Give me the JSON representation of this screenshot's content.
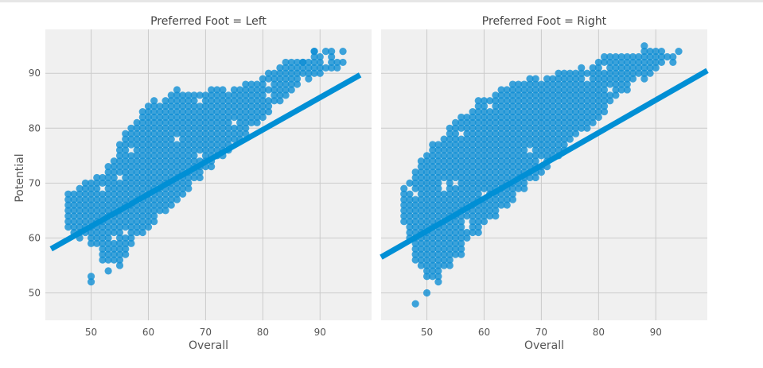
{
  "chart_data": {
    "type": "scatter",
    "style": "fivethirtyeight facet grid with linear regression line",
    "colors": {
      "points": "#0f8fd4",
      "line": "#008fd5",
      "panel": "#f0f0f0",
      "grid": "#cbcbcb"
    },
    "ylabel": "Potential",
    "xlabel": "Overall",
    "grid": true,
    "legend": "none",
    "xlim": [
      42,
      99
    ],
    "ylim": [
      45,
      98
    ],
    "yticks": [
      50,
      60,
      70,
      80,
      90
    ],
    "xticks": [
      50,
      60,
      70,
      80,
      90
    ],
    "panels": [
      {
        "title": "Preferred Foot = Left",
        "xlabel": "Overall",
        "xticks": [
          50,
          60,
          70,
          80,
          90
        ],
        "ylabel": "Potential",
        "yticks": [
          50,
          60,
          70,
          80,
          90
        ],
        "x_range": [
          46,
          94
        ],
        "regression": {
          "x": [
            43,
            97
          ],
          "y": [
            58,
            89.7
          ]
        },
        "points": {
          "lower_edge": [
            [
              46,
              62
            ],
            [
              48,
              60
            ],
            [
              50,
              59
            ],
            [
              52,
              56
            ],
            [
              54,
              55
            ],
            [
              56,
              57
            ],
            [
              58,
              60
            ],
            [
              60,
              62
            ],
            [
              62,
              64
            ],
            [
              64,
              66
            ],
            [
              66,
              68
            ],
            [
              68,
              70
            ],
            [
              70,
              72
            ],
            [
              72,
              74
            ],
            [
              74,
              76
            ],
            [
              76,
              78
            ],
            [
              78,
              80
            ],
            [
              80,
              82
            ],
            [
              82,
              84
            ],
            [
              84,
              86
            ],
            [
              86,
              88
            ],
            [
              88,
              89
            ],
            [
              90,
              90
            ]
          ],
          "upper_edge": [
            [
              46,
              68
            ],
            [
              48,
              69
            ],
            [
              50,
              70
            ],
            [
              52,
              72
            ],
            [
              54,
              74
            ],
            [
              56,
              79
            ],
            [
              58,
              82
            ],
            [
              60,
              84
            ],
            [
              62,
              85
            ],
            [
              64,
              86
            ],
            [
              66,
              87
            ],
            [
              68,
              87
            ],
            [
              70,
              87
            ],
            [
              72,
              87
            ],
            [
              74,
              87
            ],
            [
              76,
              87
            ],
            [
              78,
              88
            ],
            [
              80,
              89
            ],
            [
              82,
              91
            ],
            [
              84,
              92
            ],
            [
              86,
              92
            ],
            [
              88,
              93
            ],
            [
              90,
              94
            ]
          ],
          "outliers": [
            [
              50,
              52
            ],
            [
              50,
              53
            ],
            [
              53,
              54
            ],
            [
              55,
              55
            ],
            [
              94,
              94
            ],
            [
              89,
              94
            ],
            [
              87,
              92
            ],
            [
              85,
              92
            ]
          ]
        }
      },
      {
        "title": "Preferred Foot = Right",
        "xlabel": "Overall",
        "xticks": [
          50,
          60,
          70,
          80,
          90
        ],
        "yticks": [],
        "x_range": [
          46,
          94
        ],
        "regression": {
          "x": [
            42,
            99
          ],
          "y": [
            56.5,
            90.5
          ]
        },
        "points": {
          "lower_edge": [
            [
              46,
              62
            ],
            [
              48,
              56
            ],
            [
              50,
              53
            ],
            [
              52,
              53
            ],
            [
              54,
              55
            ],
            [
              56,
              57
            ],
            [
              58,
              60
            ],
            [
              60,
              62
            ],
            [
              62,
              64
            ],
            [
              64,
              66
            ],
            [
              66,
              68
            ],
            [
              68,
              70
            ],
            [
              70,
              72
            ],
            [
              72,
              74
            ],
            [
              74,
              76
            ],
            [
              76,
              78
            ],
            [
              78,
              80
            ],
            [
              80,
              82
            ],
            [
              82,
              84
            ],
            [
              84,
              86
            ],
            [
              86,
              88
            ],
            [
              88,
              89
            ],
            [
              90,
              90
            ]
          ],
          "upper_edge": [
            [
              46,
              70
            ],
            [
              48,
              72
            ],
            [
              50,
              75
            ],
            [
              52,
              78
            ],
            [
              54,
              80
            ],
            [
              56,
              82
            ],
            [
              58,
              84
            ],
            [
              60,
              85
            ],
            [
              62,
              86
            ],
            [
              64,
              87
            ],
            [
              66,
              88
            ],
            [
              68,
              89
            ],
            [
              70,
              89
            ],
            [
              72,
              89
            ],
            [
              74,
              90
            ],
            [
              76,
              90
            ],
            [
              78,
              91
            ],
            [
              80,
              92
            ],
            [
              82,
              93
            ],
            [
              84,
              93
            ],
            [
              86,
              93
            ],
            [
              88,
              94
            ],
            [
              90,
              95
            ]
          ],
          "outliers": [
            [
              48,
              48
            ],
            [
              50,
              50
            ],
            [
              52,
              52
            ],
            [
              91,
              93
            ],
            [
              92,
              93
            ],
            [
              93,
              93
            ],
            [
              94,
              94
            ],
            [
              88,
              95
            ]
          ]
        }
      }
    ]
  }
}
